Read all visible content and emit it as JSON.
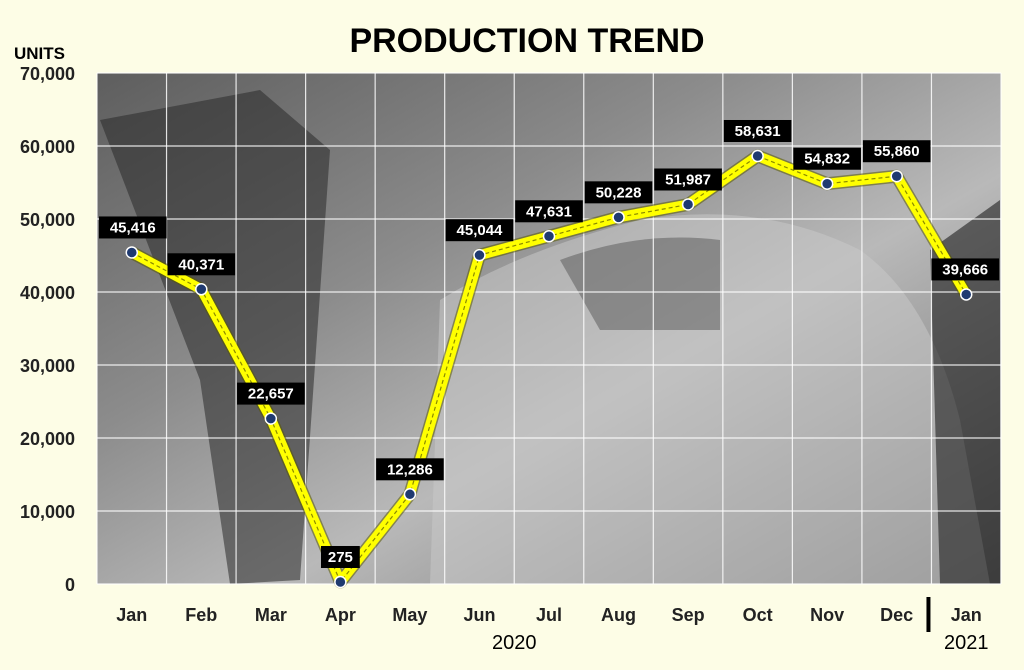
{
  "chart_data": {
    "type": "line",
    "title": "PRODUCTION TREND",
    "ylabel": "UNITS",
    "xlabel": "",
    "ylim": [
      0,
      70000
    ],
    "yticks": [
      0,
      10000,
      20000,
      30000,
      40000,
      50000,
      60000,
      70000
    ],
    "ytick_labels": [
      "0",
      "10,000",
      "20,000",
      "30,000",
      "40,000",
      "50,000",
      "60,000",
      "70,000"
    ],
    "grid": true,
    "categories": [
      "Jan",
      "Feb",
      "Mar",
      "Apr",
      "May",
      "Jun",
      "Jul",
      "Aug",
      "Sep",
      "Oct",
      "Nov",
      "Dec",
      "Jan"
    ],
    "year_labels": [
      {
        "label": "2020",
        "from": 0,
        "to": 11
      },
      {
        "label": "2021",
        "from": 12,
        "to": 12
      }
    ],
    "series": [
      {
        "values": [
          45416,
          40371,
          22657,
          275,
          12286,
          45044,
          47631,
          50228,
          51987,
          58631,
          54832,
          55860,
          39666
        ],
        "data_labels": [
          "45,416",
          "40,371",
          "22,657",
          "275",
          "12,286",
          "45,044",
          "47,631",
          "50,228",
          "51,987",
          "58,631",
          "54,832",
          "55,860",
          "39,666"
        ],
        "color": "#ffff00",
        "marker_color": "#1f3a70"
      }
    ],
    "background": "photo of automotive assembly line (grayscale)"
  },
  "colors": {
    "page_bg": "#fdfde6",
    "plot_bg": "#9a9a9a",
    "grid": "#ffffff",
    "line": "#ffff00",
    "label_bg": "#000000",
    "label_text": "#ffffff",
    "axis_text": "#222222"
  }
}
